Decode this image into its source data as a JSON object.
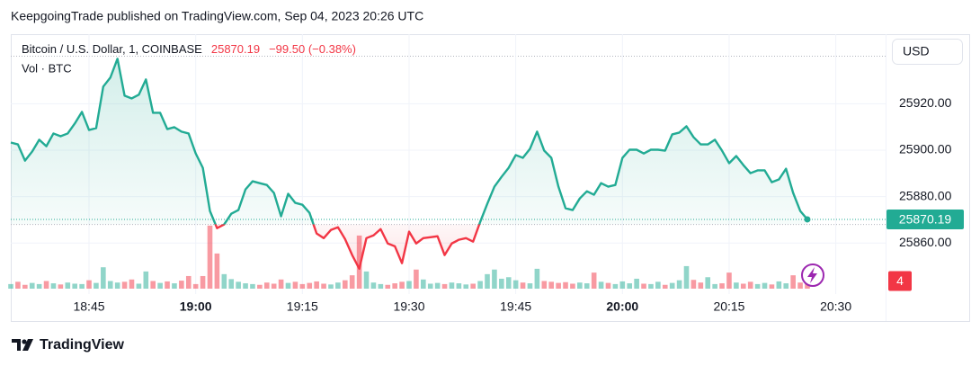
{
  "chart_data": {
    "type": "baseline",
    "title": "KeepgoingTrade published on TradingView.com, Sep 04, 2023 20:26 UTC",
    "symbol": "Bitcoin / U.S. Dollar, 1, COINBASE",
    "change_label": "−99.50 (−0.38%)",
    "currency": "USD",
    "brand": "TradingView",
    "up_color": "#22ab94",
    "down_color": "#f23645",
    "baseline_value": 25868.0,
    "grid": true,
    "x": [
      "18:34",
      "18:35",
      "18:36",
      "18:37",
      "18:38",
      "18:39",
      "18:40",
      "18:41",
      "18:42",
      "18:43",
      "18:44",
      "18:45",
      "18:46",
      "18:47",
      "18:48",
      "18:49",
      "18:50",
      "18:51",
      "18:52",
      "18:53",
      "18:54",
      "18:55",
      "18:56",
      "18:57",
      "18:58",
      "18:59",
      "19:00",
      "19:01",
      "19:02",
      "19:03",
      "19:04",
      "19:05",
      "19:06",
      "19:07",
      "19:08",
      "19:09",
      "19:10",
      "19:11",
      "19:12",
      "19:13",
      "19:14",
      "19:15",
      "19:16",
      "19:17",
      "19:18",
      "19:19",
      "19:20",
      "19:21",
      "19:22",
      "19:23",
      "19:24",
      "19:25",
      "19:26",
      "19:27",
      "19:28",
      "19:29",
      "19:30",
      "19:31",
      "19:32",
      "19:33",
      "19:34",
      "19:35",
      "19:36",
      "19:37",
      "19:38",
      "19:39",
      "19:40",
      "19:41",
      "19:42",
      "19:43",
      "19:44",
      "19:45",
      "19:46",
      "19:47",
      "19:48",
      "19:49",
      "19:50",
      "19:51",
      "19:52",
      "19:53",
      "19:54",
      "19:55",
      "19:56",
      "19:57",
      "19:58",
      "19:59",
      "20:00",
      "20:01",
      "20:02",
      "20:03",
      "20:04",
      "20:05",
      "20:06",
      "20:07",
      "20:08",
      "20:09",
      "20:10",
      "20:11",
      "20:12",
      "20:13",
      "20:14",
      "20:15",
      "20:16",
      "20:17",
      "20:18",
      "20:19",
      "20:20",
      "20:21",
      "20:22",
      "20:23",
      "20:24",
      "20:25",
      "20:26"
    ],
    "series": [
      {
        "name": "Bitcoin / U.S. Dollar, 1, COINBASE",
        "values": [
          25903.3,
          25902.5,
          25895.5,
          25899.4,
          25904.5,
          25901.7,
          25907.2,
          25906.0,
          25907.2,
          25911.5,
          25916.5,
          25908.7,
          25909.5,
          25927.4,
          25931.3,
          25939.4,
          25923.5,
          25922.3,
          25923.9,
          25930.5,
          25916.1,
          25916.1,
          25909.1,
          25909.9,
          25908.0,
          25907.2,
          25898.6,
          25892.4,
          25873.8,
          25866.4,
          25868.0,
          25872.6,
          25874.2,
          25883.1,
          25886.6,
          25885.8,
          25885.0,
          25881.6,
          25871.5,
          25881.2,
          25877.3,
          25876.5,
          25873.0,
          25864.1,
          25862.1,
          25865.6,
          25866.8,
          25861.7,
          25854.8,
          25848.9,
          25862.1,
          25863.3,
          25866.0,
          25859.8,
          25858.6,
          25851.3,
          25864.9,
          25859.8,
          25862.1,
          25862.5,
          25862.9,
          25854.8,
          25859.8,
          25861.4,
          25862.1,
          25860.6,
          25869.1,
          25876.9,
          25884.3,
          25888.5,
          25892.4,
          25897.9,
          25896.7,
          25900.6,
          25908.0,
          25899.8,
          25896.7,
          25884.3,
          25875.0,
          25874.2,
          25879.2,
          25882.3,
          25880.8,
          25885.8,
          25884.3,
          25885.0,
          25896.7,
          25900.2,
          25900.2,
          25898.6,
          25900.2,
          25900.2,
          25899.8,
          25906.8,
          25907.6,
          25910.3,
          25905.6,
          25902.5,
          25902.5,
          25904.5,
          25899.8,
          25894.4,
          25897.5,
          25893.6,
          25890.1,
          25891.3,
          25891.3,
          25886.2,
          25887.4,
          25892.0,
          25881.6,
          25873.8,
          25870.19
        ]
      },
      {
        "name": "Vol · BTC",
        "axis": "volume",
        "values": [
          1.2,
          1.8,
          1.0,
          1.5,
          1.2,
          2.0,
          1.4,
          1.1,
          1.6,
          1.3,
          1.2,
          2.2,
          1.5,
          5.6,
          2.0,
          1.6,
          1.8,
          2.4,
          1.3,
          4.5,
          2.0,
          1.5,
          1.9,
          1.4,
          2.1,
          3.3,
          1.2,
          3.3,
          16.5,
          9.2,
          3.8,
          2.5,
          1.8,
          1.4,
          1.2,
          1.0,
          1.6,
          1.3,
          2.4,
          1.5,
          1.8,
          1.2,
          1.5,
          1.9,
          1.3,
          1.1,
          1.6,
          2.2,
          3.5,
          13.9,
          4.5,
          1.6,
          1.2,
          1.0,
          1.4,
          1.8,
          2.0,
          5.0,
          2.4,
          1.3,
          1.5,
          1.2,
          1.6,
          1.4,
          1.1,
          1.3,
          2.0,
          3.8,
          5.0,
          2.6,
          3.0,
          2.2,
          1.6,
          1.4,
          5.2,
          2.0,
          1.8,
          1.5,
          1.7,
          1.3,
          1.6,
          1.4,
          4.2,
          1.8,
          1.5,
          1.2,
          1.9,
          1.4,
          2.6,
          1.3,
          1.2,
          1.8,
          1.0,
          1.5,
          2.2,
          5.9,
          2.3,
          1.6,
          3.0,
          1.2,
          1.4,
          4.2,
          1.6,
          1.3,
          1.8,
          1.2,
          1.5,
          1.1,
          1.9,
          1.4,
          3.5,
          1.6,
          4
        ]
      }
    ],
    "xlim": [
      "18:34",
      "20:37"
    ],
    "xticks": [
      "18:45",
      "19:00",
      "19:15",
      "19:30",
      "19:45",
      "20:00",
      "20:15",
      "20:30"
    ],
    "ylim": [
      25838,
      25950
    ],
    "yticks": [
      {
        "value": 25860,
        "label": "25860.00"
      },
      {
        "value": 25880,
        "label": "25880.00"
      },
      {
        "value": 25900,
        "label": "25900.00"
      },
      {
        "value": 25920,
        "label": "25920.00"
      }
    ],
    "volume_ylim": [
      0,
      40
    ]
  }
}
